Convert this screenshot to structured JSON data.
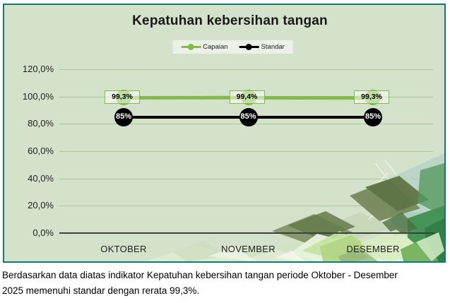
{
  "chart": {
    "title": "Kepatuhan kebersihan tangan"
  },
  "chart_data": {
    "type": "line",
    "title": "Kepatuhan kebersihan tangan",
    "categories": [
      "OKTOBER",
      "NOVEMBER",
      "DESEMBER"
    ],
    "series": [
      {
        "name": "Capaian",
        "color": "#84ba4b",
        "values": [
          99.3,
          99.4,
          99.3
        ],
        "value_labels": [
          "99,3%",
          "99,4%",
          "99,3%"
        ],
        "label_style": "boxed"
      },
      {
        "name": "Standar",
        "color": "#000000",
        "values": [
          85,
          85,
          85
        ],
        "value_labels": [
          "85%",
          "85%",
          "85%"
        ],
        "label_style": "inside"
      }
    ],
    "yticks": [
      {
        "v": 0,
        "label": "0,0%"
      },
      {
        "v": 20,
        "label": "20,0%"
      },
      {
        "v": 40,
        "label": "40,0%"
      },
      {
        "v": 60,
        "label": "60,0%"
      },
      {
        "v": 80,
        "label": "80,0%"
      },
      {
        "v": 100,
        "label": "100,0%"
      },
      {
        "v": 120,
        "label": "120,0%"
      }
    ],
    "ylim": [
      0,
      120
    ],
    "grid": true,
    "legend_position": "top"
  },
  "caption": {
    "lines": [
      "Berdasarkan data diatas indikator Kepatuhan kebersihan tangan periode Oktober - Desember",
      "2025 memenuhi standar dengan rerata 99,3%."
    ]
  },
  "colors": {
    "chart_bg": "#d5e2cb",
    "card_border": "#0e7c74",
    "gridline": "#a5ca97",
    "axis": "#3f3f3f",
    "capaian": "#84ba4b",
    "standar": "#000000",
    "legend_bg": "#ebf1e6"
  }
}
